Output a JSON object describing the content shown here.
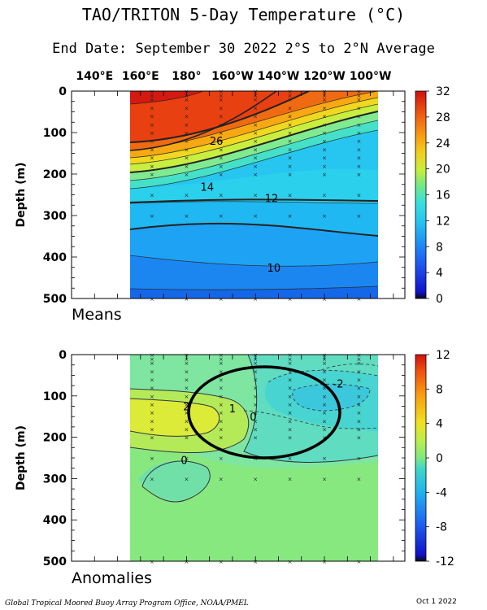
{
  "title": "TAO/TRITON 5-Day Temperature (°C)",
  "subtitle": "End Date: September 30 2022  2°S to 2°N Average",
  "footer_left": "Global Tropical Moored Buoy Array Program Office, NOAA/PMEL",
  "footer_right": "Oct  1 2022",
  "chart_data": [
    {
      "type": "heatmap",
      "name": "Means",
      "panel_label": "Means",
      "ylabel": "Depth (m)",
      "x_ticks": [
        "140°E",
        "160°E",
        "180°",
        "160°W",
        "140°W",
        "120°W",
        "100°W"
      ],
      "x_lon_range": [
        130,
        275
      ],
      "y_ticks": [
        0,
        100,
        200,
        300,
        400,
        500
      ],
      "ylim": [
        0,
        500
      ],
      "data_lon_range": [
        160,
        265
      ],
      "colorbar_ticks": [
        0,
        4,
        8,
        12,
        16,
        20,
        24,
        28,
        32
      ],
      "colorbar_range": [
        0,
        32
      ],
      "contour_labels": [
        {
          "text": "26",
          "lon": 193,
          "depth": 120
        },
        {
          "text": "14",
          "lon": 189,
          "depth": 230
        },
        {
          "text": "12",
          "lon": 217,
          "depth": 258
        },
        {
          "text": "10",
          "lon": 218,
          "depth": 425
        }
      ],
      "isotherm_depths": {
        "lons": [
          160,
          180,
          200,
          220,
          240,
          265
        ],
        "28": [
          30,
          20,
          10,
          0,
          null,
          null
        ],
        "26": [
          130,
          120,
          95,
          55,
          20,
          0
        ],
        "24": [
          150,
          135,
          110,
          75,
          40,
          10
        ],
        "20": [
          170,
          160,
          140,
          110,
          80,
          55
        ],
        "16": [
          190,
          185,
          170,
          145,
          120,
          100
        ],
        "14": [
          225,
          220,
          205,
          180,
          155,
          140
        ],
        "12": [
          255,
          250,
          250,
          260,
          280,
          295
        ],
        "10": [
          410,
          400,
          420,
          425,
          410,
          395
        ],
        "9": [
          480,
          480,
          480,
          480,
          480,
          480
        ]
      }
    },
    {
      "type": "heatmap",
      "name": "Anomalies",
      "panel_label": "Anomalies",
      "ylabel": "Depth (m)",
      "x_ticks": [
        "140°E",
        "160°E",
        "180°",
        "160°W",
        "140°W",
        "120°W",
        "100°W"
      ],
      "x_lon_range": [
        130,
        275
      ],
      "y_ticks": [
        0,
        100,
        200,
        300,
        400,
        500
      ],
      "ylim": [
        0,
        500
      ],
      "data_lon_range": [
        160,
        265
      ],
      "colorbar_ticks": [
        -12,
        -8,
        -4,
        0,
        4,
        8,
        12
      ],
      "colorbar_range": [
        -12,
        12
      ],
      "contour_labels": [
        {
          "text": "2",
          "lon": 180,
          "depth": 125
        },
        {
          "text": "1",
          "lon": 200,
          "depth": 130
        },
        {
          "text": "0",
          "lon": 209,
          "depth": 150
        },
        {
          "text": "0",
          "lon": 179,
          "depth": 255
        },
        {
          "text": "-2",
          "lon": 246,
          "depth": 70
        }
      ],
      "features": [
        {
          "anomaly": 3,
          "description": "warm core",
          "lon_range": [
            160,
            198
          ],
          "depth_range": [
            100,
            200
          ]
        },
        {
          "anomaly": -2,
          "description": "cool core",
          "lon_range": [
            232,
            262
          ],
          "depth_range": [
            50,
            150
          ]
        }
      ],
      "annotation": "black ellipse highlighting cool anomaly region near 180°–140°W, 50–240 m"
    }
  ]
}
